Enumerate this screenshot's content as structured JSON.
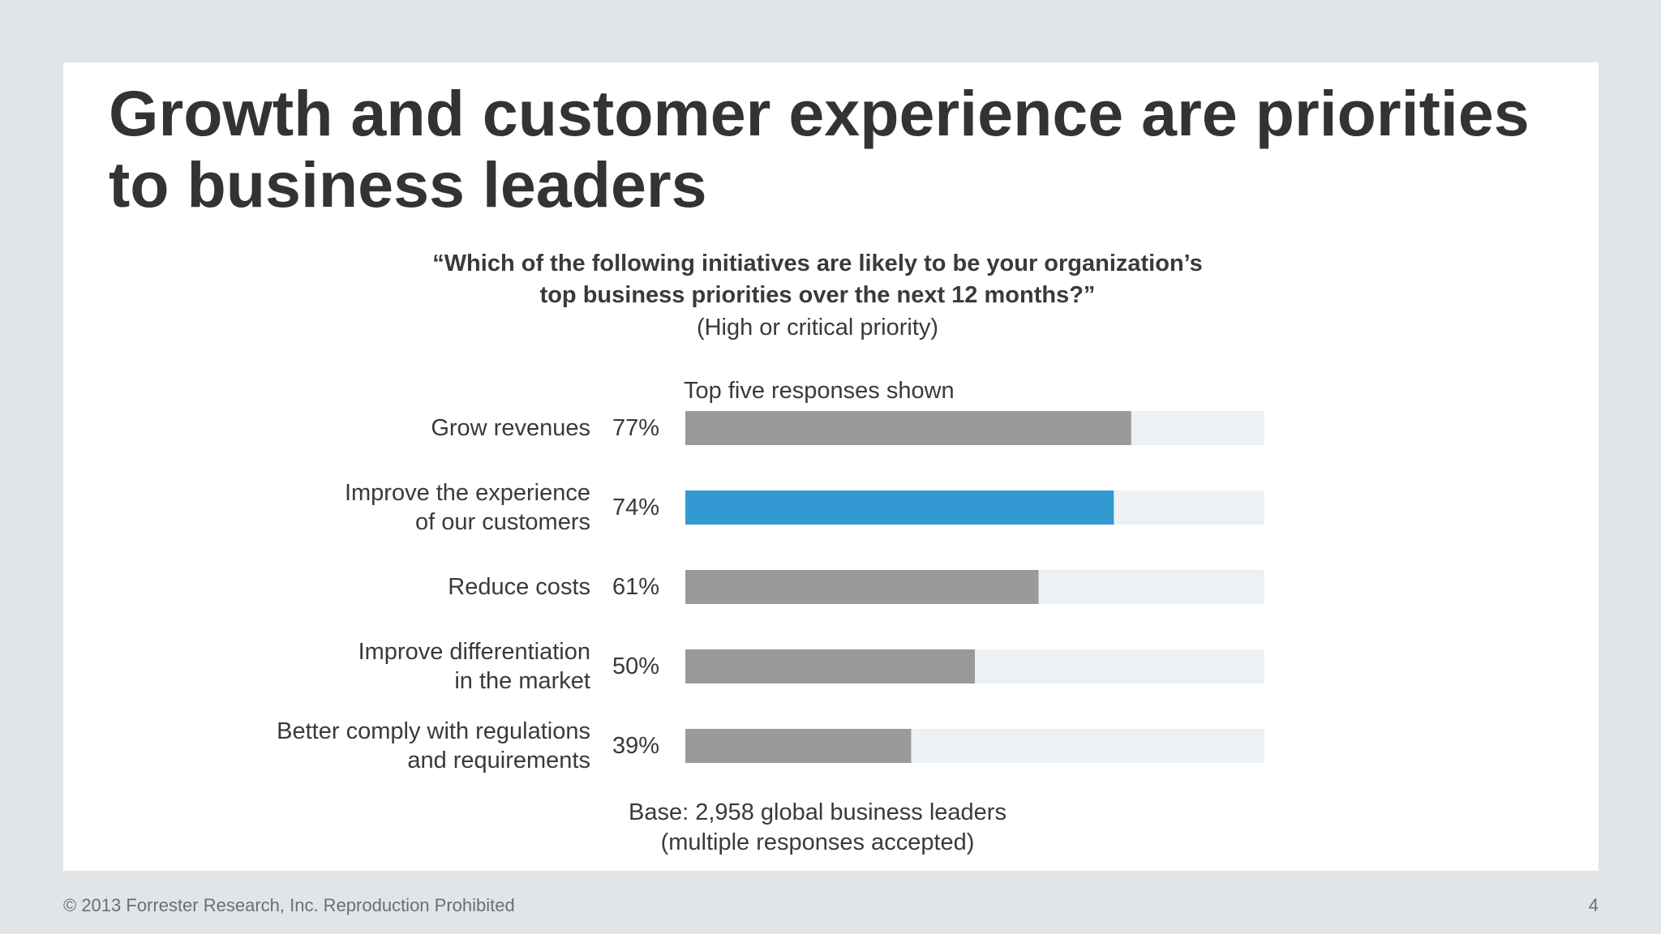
{
  "slide": {
    "title": "Growth and customer experience are priorities to business leaders",
    "question_line1": "“Which of the following initiatives are likely to be your organization’s",
    "question_line2": "top business priorities over the next 12 months?”",
    "qualifier": "(High or critical priority)",
    "chart_note": "Top five responses shown",
    "base_line1": "Base: 2,958 global business leaders",
    "base_line2": "(multiple responses accepted)"
  },
  "footer": {
    "copyright": "© 2013 Forrester Research, Inc. Reproduction Prohibited",
    "page_number": "4"
  },
  "colors": {
    "bar_default": "#9a999b",
    "bar_highlight": "#3399d3",
    "bar_track": "#eef1f3",
    "panel": "#ffffff",
    "background": "#e1e5e8"
  },
  "chart_data": {
    "type": "bar",
    "orientation": "horizontal",
    "categories": [
      [
        "Grow revenues"
      ],
      [
        "Improve the experience",
        "of our customers"
      ],
      [
        "Reduce costs"
      ],
      [
        "Improve differentiation",
        "in the market"
      ],
      [
        "Better comply with regulations",
        "and requirements"
      ]
    ],
    "values": [
      77,
      74,
      61,
      50,
      39
    ],
    "value_labels": [
      "77%",
      "74%",
      "61%",
      "50%",
      "39%"
    ],
    "highlighted_index": 1,
    "xlim": [
      0,
      100
    ],
    "unit": "%",
    "grid": false,
    "legend": "none"
  }
}
